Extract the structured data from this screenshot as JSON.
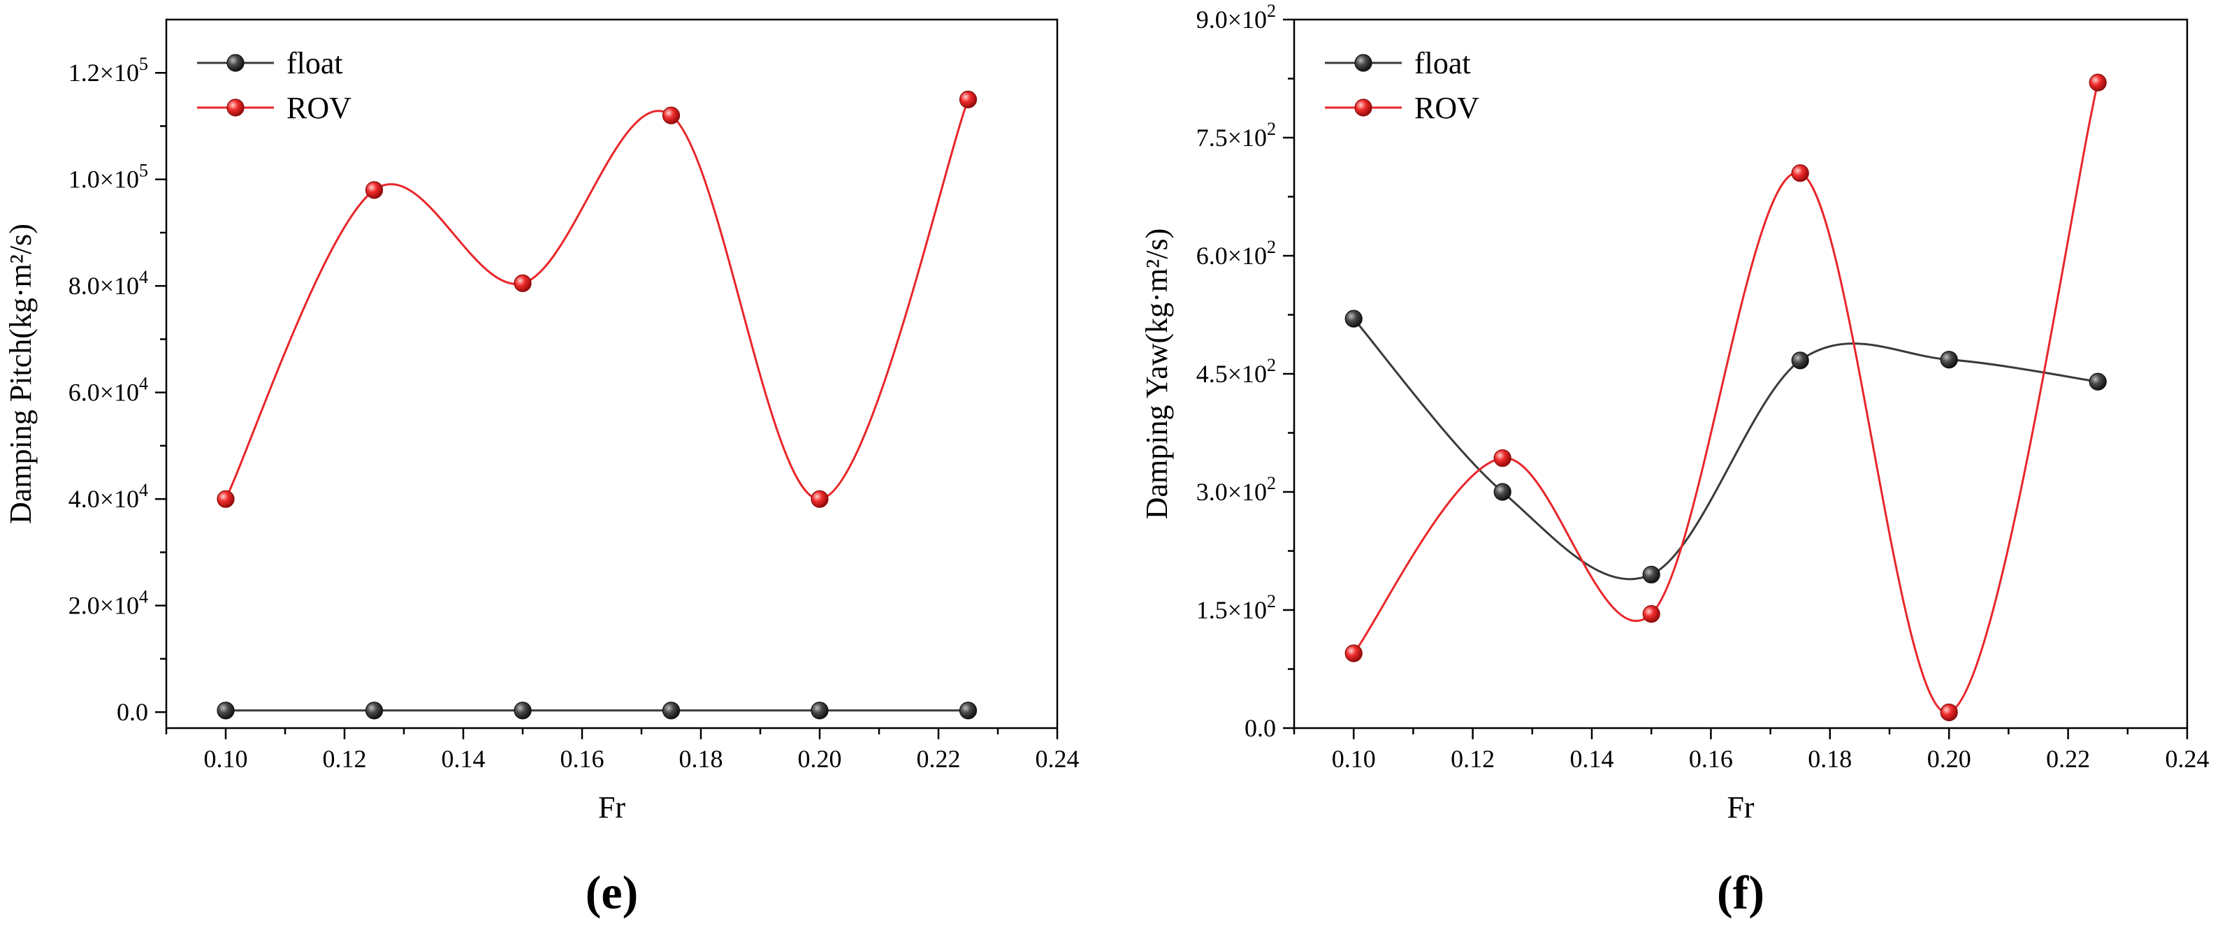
{
  "chart_data": [
    {
      "type": "line",
      "panel_label": "(e)",
      "xlabel": "Fr",
      "ylabel": "Damping Pitch(kg·m²/s)",
      "xlim": [
        0.09,
        0.24
      ],
      "ylim": [
        -3000,
        130000
      ],
      "x_ticks": [
        0.1,
        0.12,
        0.14,
        0.16,
        0.18,
        0.2,
        0.22,
        0.24
      ],
      "x_tick_labels": [
        "0.10",
        "0.12",
        "0.14",
        "0.16",
        "0.18",
        "0.20",
        "0.22",
        "0.24"
      ],
      "y_ticks": [
        0,
        20000,
        40000,
        60000,
        80000,
        100000,
        120000
      ],
      "y_tick_labels": [
        {
          "mantissa": "0.0",
          "exp": ""
        },
        {
          "mantissa": "2.0×10",
          "exp": "4"
        },
        {
          "mantissa": "4.0×10",
          "exp": "4"
        },
        {
          "mantissa": "6.0×10",
          "exp": "4"
        },
        {
          "mantissa": "8.0×10",
          "exp": "4"
        },
        {
          "mantissa": "1.0×10",
          "exp": "5"
        },
        {
          "mantissa": "1.2×10",
          "exp": "5"
        }
      ],
      "legend_position": "top-left",
      "series": [
        {
          "name": "float",
          "color": "#3a3a3a",
          "x": [
            0.1,
            0.125,
            0.15,
            0.175,
            0.2,
            0.225
          ],
          "values": [
            300,
            300,
            300,
            300,
            300,
            300
          ]
        },
        {
          "name": "ROV",
          "color": "#e8262a",
          "x": [
            0.1,
            0.125,
            0.15,
            0.175,
            0.2,
            0.225
          ],
          "values": [
            40000,
            98000,
            80500,
            112000,
            40000,
            115000
          ]
        }
      ]
    },
    {
      "type": "line",
      "panel_label": "(f)",
      "xlabel": "Fr",
      "ylabel": "Damping Yaw(kg·m²/s)",
      "xlim": [
        0.09,
        0.24
      ],
      "ylim": [
        0,
        900
      ],
      "x_ticks": [
        0.1,
        0.12,
        0.14,
        0.16,
        0.18,
        0.2,
        0.22,
        0.24
      ],
      "x_tick_labels": [
        "0.10",
        "0.12",
        "0.14",
        "0.16",
        "0.18",
        "0.20",
        "0.22",
        "0.24"
      ],
      "y_ticks": [
        0,
        150,
        300,
        450,
        600,
        750,
        900
      ],
      "y_tick_labels": [
        {
          "mantissa": "0.0",
          "exp": ""
        },
        {
          "mantissa": "1.5×10",
          "exp": "2"
        },
        {
          "mantissa": "3.0×10",
          "exp": "2"
        },
        {
          "mantissa": "4.5×10",
          "exp": "2"
        },
        {
          "mantissa": "6.0×10",
          "exp": "2"
        },
        {
          "mantissa": "7.5×10",
          "exp": "2"
        },
        {
          "mantissa": "9.0×10",
          "exp": "2"
        }
      ],
      "legend_position": "top-left",
      "series": [
        {
          "name": "float",
          "color": "#3a3a3a",
          "x": [
            0.1,
            0.125,
            0.15,
            0.175,
            0.2,
            0.225
          ],
          "values": [
            520,
            300,
            195,
            467,
            468,
            440
          ]
        },
        {
          "name": "ROV",
          "color": "#e8262a",
          "x": [
            0.1,
            0.125,
            0.15,
            0.175,
            0.2,
            0.225
          ],
          "values": [
            95,
            343,
            145,
            705,
            20,
            820
          ]
        }
      ]
    }
  ]
}
